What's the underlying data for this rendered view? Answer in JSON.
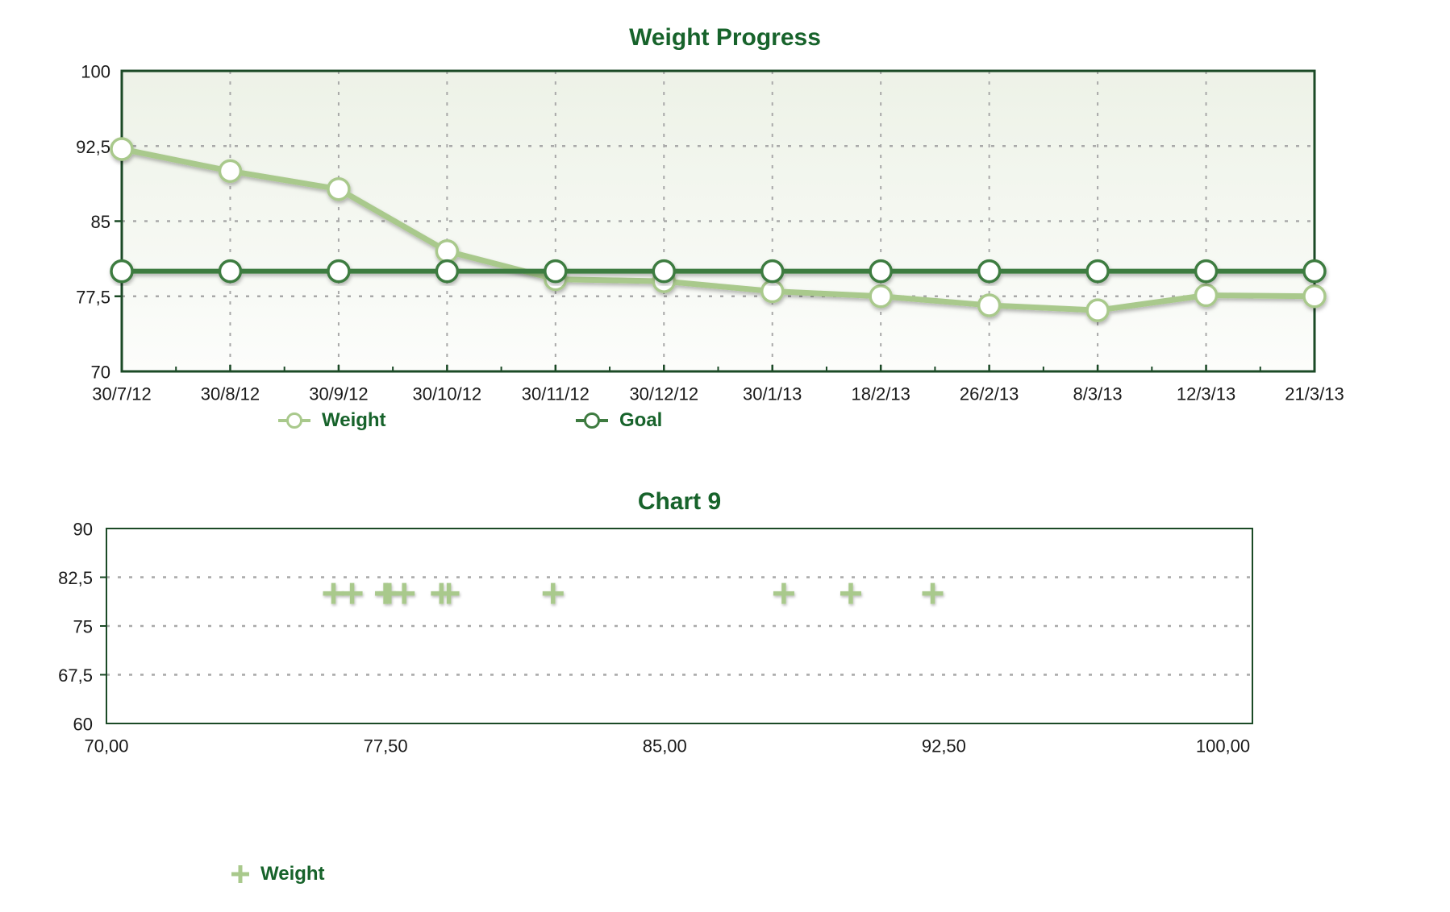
{
  "colors": {
    "title_text": "#17632B",
    "legend_text": "#17632B",
    "axis_border": "#1B4A26",
    "grid_line": "#A9A9A9",
    "tick_label": "#1A1A1A",
    "weight_series": "#A9C98C",
    "goal_series": "#3E7B40",
    "marker_fill": "#FFFFFF",
    "plot_bg_top": "#EDF2E7",
    "plot_bg_bottom": "#FCFDFB",
    "chart2_bg": "#FFFFFF"
  },
  "chart_data": [
    {
      "type": "line",
      "title": "Weight Progress",
      "categories": [
        "30/7/12",
        "30/8/12",
        "30/9/12",
        "30/10/12",
        "30/11/12",
        "30/12/12",
        "30/1/13",
        "18/2/13",
        "26/2/13",
        "8/3/13",
        "12/3/13",
        "21/3/13"
      ],
      "series": [
        {
          "name": "Weight",
          "marker": "circle",
          "color_key": "weight_series",
          "values": [
            92.2,
            90.0,
            88.2,
            82.0,
            79.2,
            79.0,
            78.0,
            77.5,
            76.6,
            76.1,
            77.6,
            77.5
          ]
        },
        {
          "name": "Goal",
          "marker": "circle",
          "color_key": "goal_series",
          "values": [
            80,
            80,
            80,
            80,
            80,
            80,
            80,
            80,
            80,
            80,
            80,
            80
          ]
        }
      ],
      "ylim": [
        70,
        100
      ],
      "yticks": [
        {
          "v": 100,
          "label": "100"
        },
        {
          "v": 92.5,
          "label": "92,5"
        },
        {
          "v": 85,
          "label": "85"
        },
        {
          "v": 77.5,
          "label": "77,5"
        },
        {
          "v": 70,
          "label": "70"
        }
      ],
      "grid": "dashed",
      "legend_position": "bottom"
    },
    {
      "type": "scatter",
      "title": "Chart 9",
      "xlim": [
        70,
        100.8
      ],
      "ylim": [
        60,
        90
      ],
      "xticks": [
        {
          "v": 70,
          "label": "70,00"
        },
        {
          "v": 77.5,
          "label": "77,50"
        },
        {
          "v": 85,
          "label": "85,00"
        },
        {
          "v": 92.5,
          "label": "92,50"
        },
        {
          "v": 100,
          "label": "100,00"
        }
      ],
      "yticks": [
        {
          "v": 90,
          "label": "90"
        },
        {
          "v": 82.5,
          "label": "82,5"
        },
        {
          "v": 75,
          "label": "75"
        },
        {
          "v": 67.5,
          "label": "67,5"
        },
        {
          "v": 60,
          "label": "60"
        }
      ],
      "series": [
        {
          "name": "Weight",
          "marker": "plus",
          "color_key": "weight_series",
          "x": [
            92.2,
            90.0,
            88.2,
            82.0,
            79.2,
            79.0,
            78.0,
            77.5,
            76.6,
            76.1,
            77.6,
            77.5
          ],
          "y": [
            80,
            80,
            80,
            80,
            80,
            80,
            80,
            80,
            80,
            80,
            80,
            80
          ]
        }
      ],
      "grid": "dashed",
      "legend_position": "bottom"
    }
  ]
}
